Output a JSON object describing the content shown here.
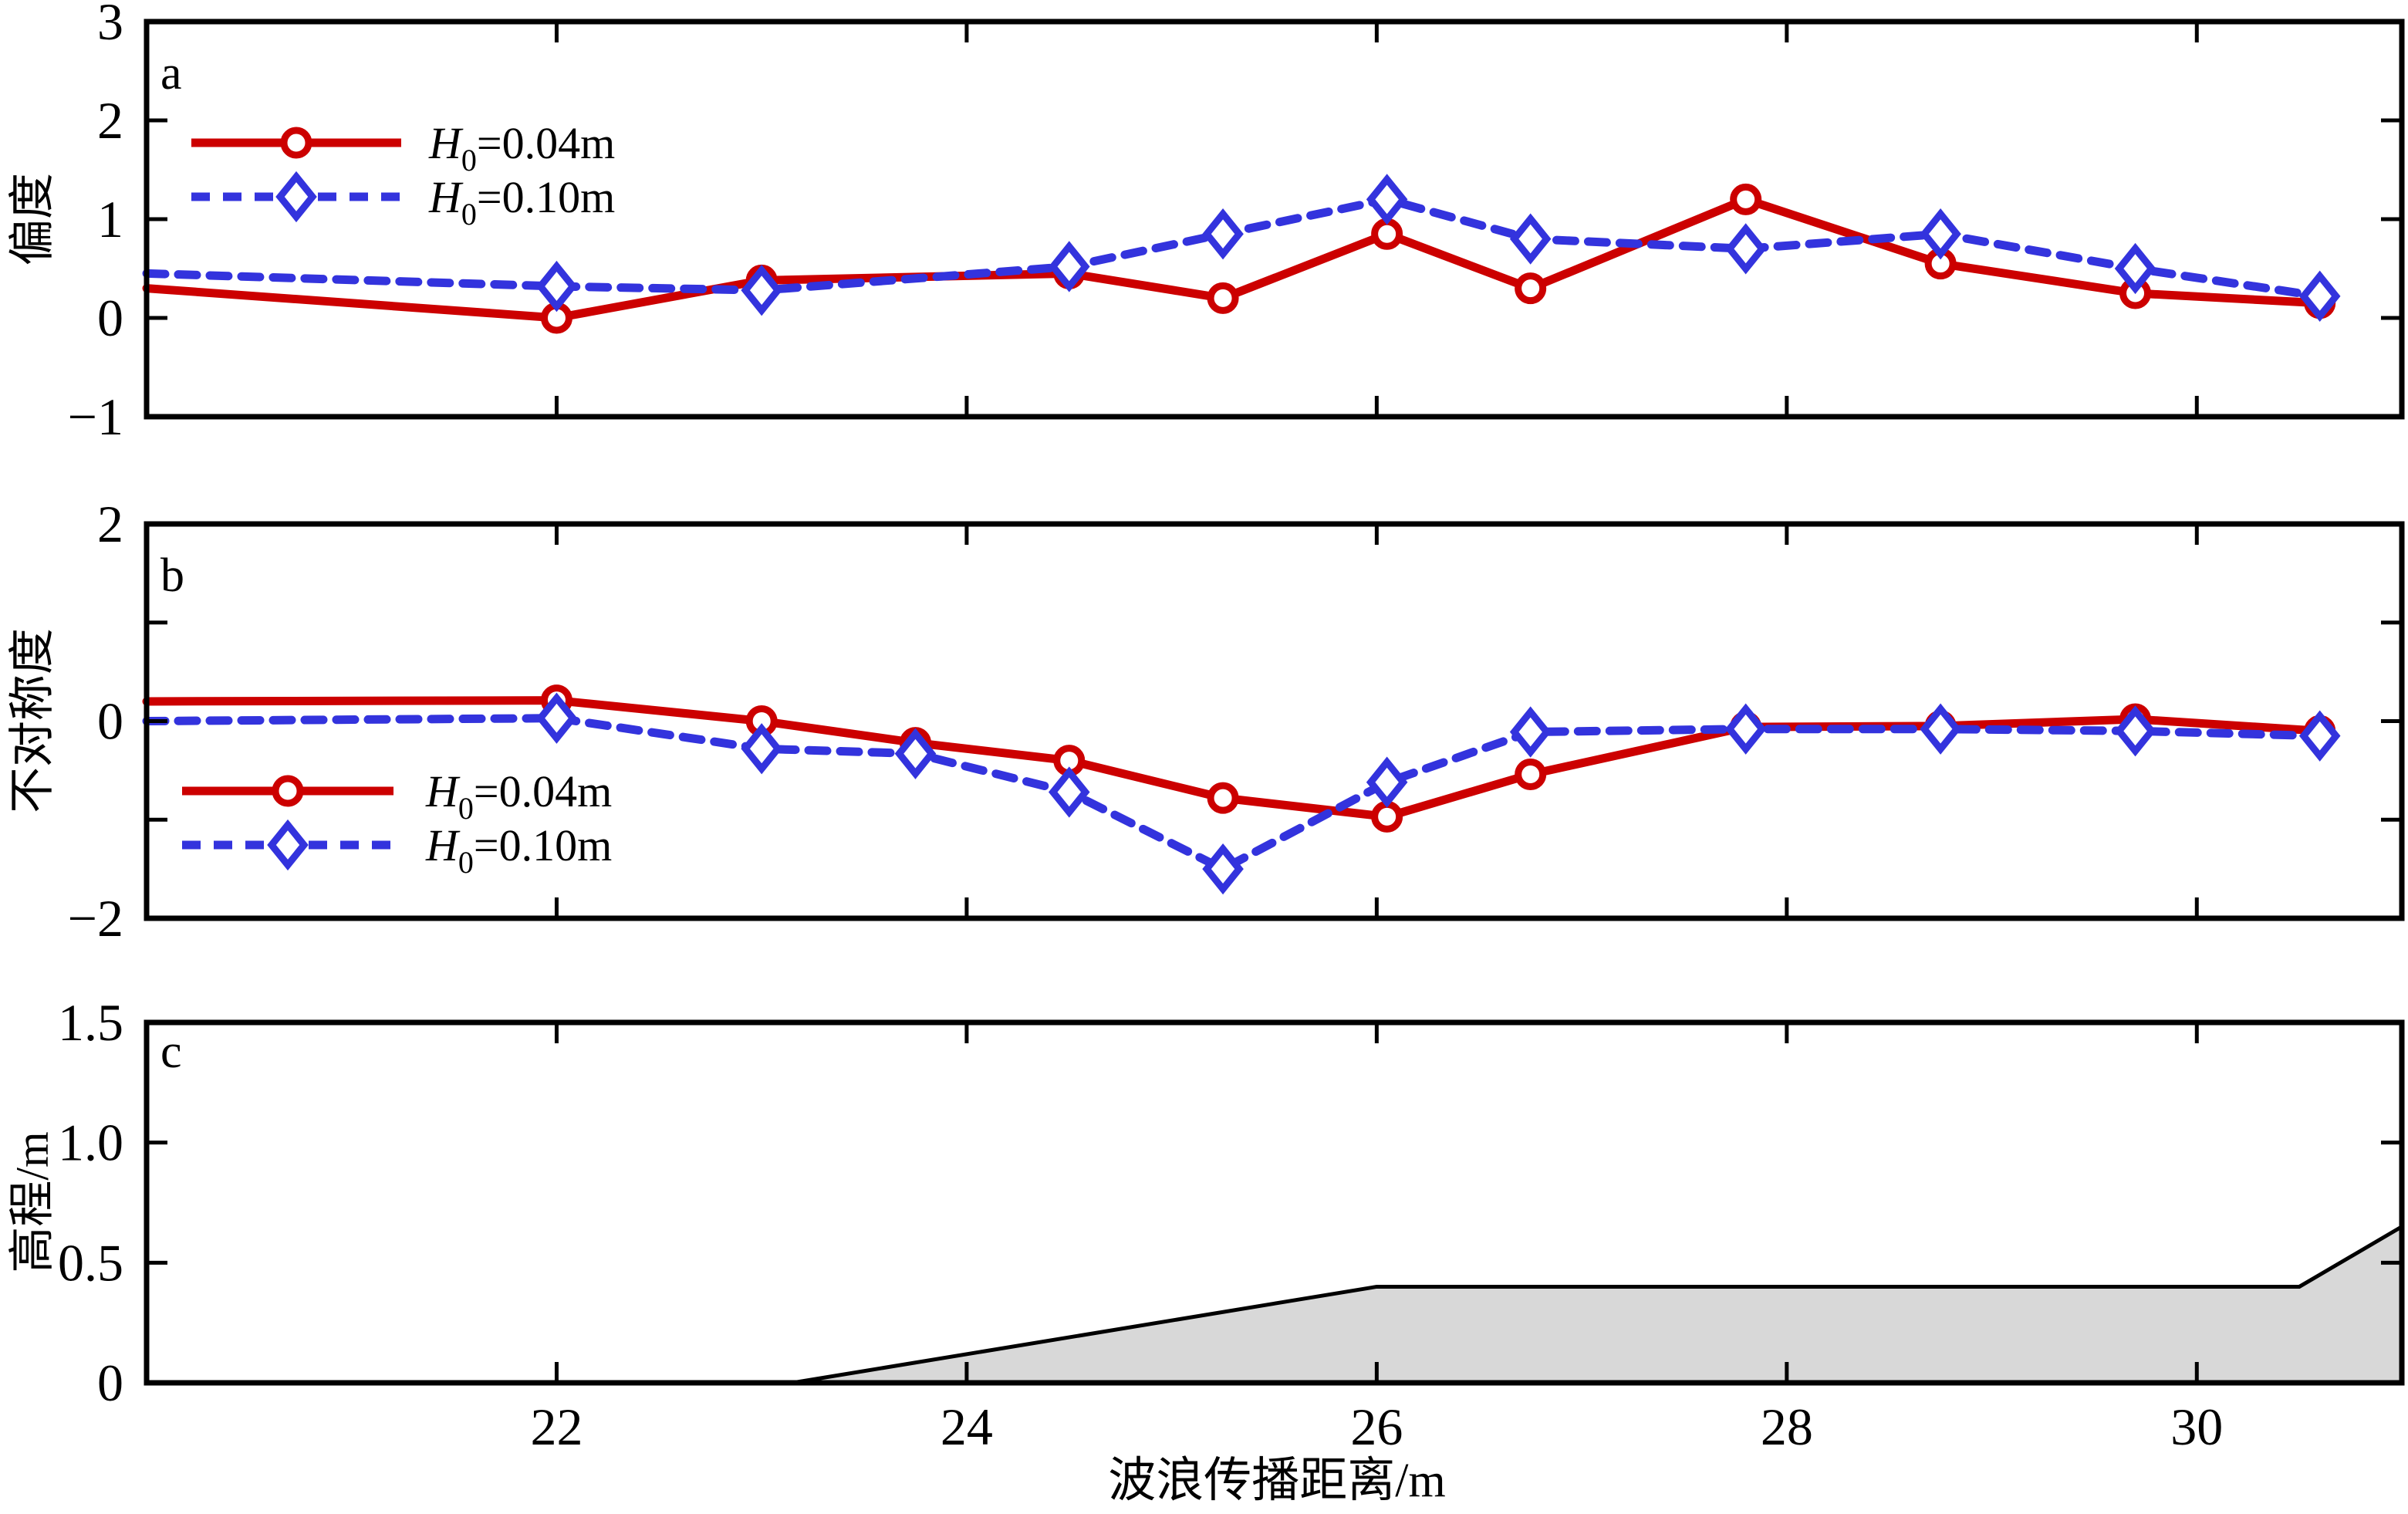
{
  "figure": {
    "xlabel": "波浪传播距离/m",
    "background": "#ffffff",
    "axis_color": "#000000",
    "bathymetry_fill": "#d8d8d8"
  },
  "chart_data": [
    {
      "id": "a",
      "type": "line",
      "panel_label": "a",
      "ylabel": "偏度",
      "xlim": [
        20,
        31
      ],
      "ylim": [
        -1,
        3
      ],
      "xticks": [
        22,
        24,
        26,
        28,
        30
      ],
      "show_xtick_labels": false,
      "yticks": [
        -1,
        0,
        1,
        2,
        3
      ],
      "ytick_labels": [
        "−1",
        "0",
        "1",
        "2",
        "3"
      ],
      "legend_position": "top-left",
      "grid": false,
      "series": [
        {
          "key": "h004",
          "label_base": "H",
          "label_sub": "0",
          "label_rest": "=0.04m",
          "color": "#cc0000",
          "line_style": "solid",
          "marker": "circle",
          "x": [
            20,
            22,
            23,
            24.5,
            25.25,
            26.05,
            26.75,
            27.8,
            28.75,
            29.7,
            30.6
          ],
          "y": [
            0.3,
            0.0,
            0.38,
            0.45,
            0.2,
            0.85,
            0.3,
            1.2,
            0.55,
            0.25,
            0.15
          ],
          "marker_start_index": 1
        },
        {
          "key": "h010",
          "label_base": "H",
          "label_sub": "0",
          "label_rest": "=0.10m",
          "color": "#3333dd",
          "line_style": "dashed",
          "marker": "diamond",
          "x": [
            20,
            22,
            23,
            24.5,
            25.25,
            26.05,
            26.75,
            27.8,
            28.75,
            29.7,
            30.6
          ],
          "y": [
            0.45,
            0.32,
            0.28,
            0.52,
            0.85,
            1.2,
            0.8,
            0.7,
            0.85,
            0.5,
            0.22
          ],
          "marker_start_index": 1
        }
      ]
    },
    {
      "id": "b",
      "type": "line",
      "panel_label": "b",
      "ylabel": "不对称度",
      "xlim": [
        20,
        31
      ],
      "ylim": [
        -2,
        2
      ],
      "xticks": [
        22,
        24,
        26,
        28,
        30
      ],
      "show_xtick_labels": false,
      "yticks": [
        -2,
        -1,
        0,
        1,
        2
      ],
      "ytick_labels": [
        "−2",
        "",
        "0",
        "",
        "2"
      ],
      "legend_position": "bottom-left",
      "grid": false,
      "series": [
        {
          "key": "h004",
          "label_base": "H",
          "label_sub": "0",
          "label_rest": "=0.04m",
          "color": "#cc0000",
          "line_style": "solid",
          "marker": "circle",
          "x": [
            20,
            22,
            23,
            23.75,
            24.5,
            25.25,
            26.05,
            26.75,
            27.8,
            28.75,
            29.7,
            30.6
          ],
          "y": [
            0.2,
            0.21,
            0.0,
            -0.22,
            -0.4,
            -0.78,
            -0.97,
            -0.54,
            -0.06,
            -0.05,
            0.02,
            -0.1
          ],
          "marker_start_index": 1
        },
        {
          "key": "h010",
          "label_base": "H",
          "label_sub": "0",
          "label_rest": "=0.10m",
          "color": "#3333dd",
          "line_style": "dashed",
          "marker": "diamond",
          "x": [
            20,
            22,
            23,
            23.75,
            24.5,
            25.25,
            26.05,
            26.75,
            27.8,
            28.75,
            29.7,
            30.6
          ],
          "y": [
            0.0,
            0.03,
            -0.28,
            -0.33,
            -0.72,
            -1.5,
            -0.62,
            -0.11,
            -0.08,
            -0.08,
            -0.1,
            -0.15
          ],
          "marker_start_index": 1
        }
      ]
    },
    {
      "id": "c",
      "type": "area",
      "panel_label": "c",
      "ylabel": "高程/m",
      "xlim": [
        20,
        31
      ],
      "ylim": [
        0,
        1.5
      ],
      "xticks": [
        22,
        24,
        26,
        28,
        30
      ],
      "show_xtick_labels": true,
      "xtick_labels": [
        "22",
        "24",
        "26",
        "28",
        "30"
      ],
      "yticks": [
        0,
        0.5,
        1,
        1.5
      ],
      "ytick_labels": [
        "0",
        "0.5",
        "1.0",
        "1.5"
      ],
      "grid": false,
      "profile": {
        "x": [
          20,
          23.15,
          26,
          30.5,
          31
        ],
        "y": [
          0,
          0,
          0.4,
          0.4,
          0.65
        ]
      }
    }
  ]
}
